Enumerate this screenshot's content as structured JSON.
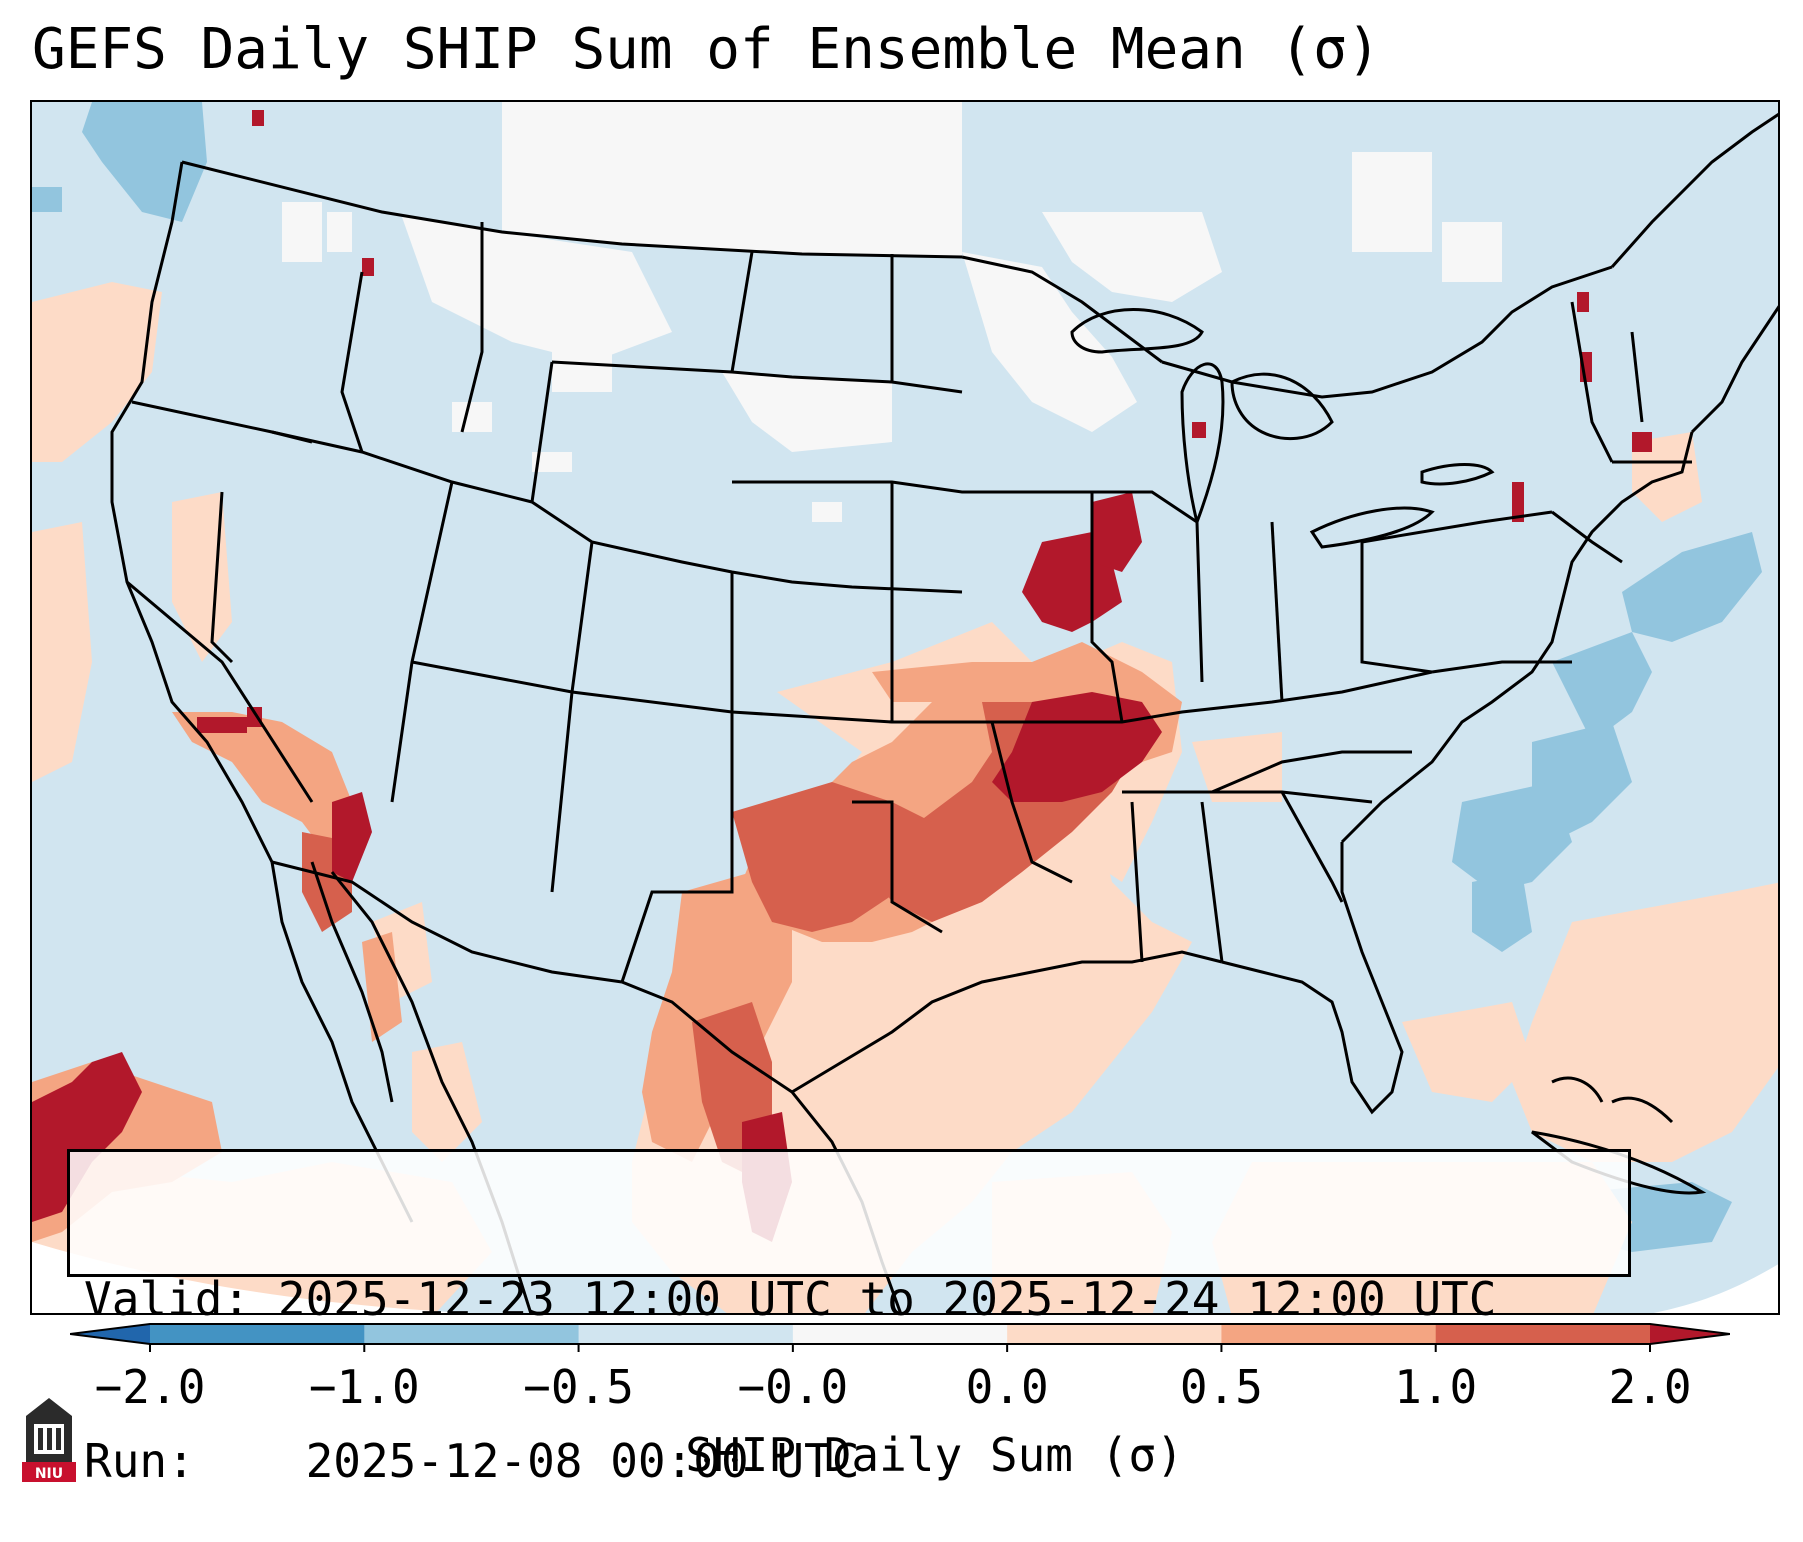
{
  "title": "GEFS Daily SHIP Sum of Ensemble Mean (σ)",
  "valid_label": "Valid:",
  "valid_value": "2025-12-23 12:00 UTC to 2025-12-24 12:00 UTC",
  "run_label": "Run:",
  "run_value": "2025-12-08 00:00 UTC",
  "colorbar": {
    "label": "SHIP Daily Sum (σ)",
    "ticks": [
      "−2.0",
      "−1.0",
      "−0.5",
      "−0.0",
      "0.0",
      "0.5",
      "1.0",
      "2.0"
    ],
    "colors": [
      "#4393c3",
      "#92c5de",
      "#d1e5f0",
      "#f7f7f7",
      "#fddbc7",
      "#f4a582",
      "#d6604d"
    ],
    "extend_low_color": "#2166ac",
    "extend_high_color": "#b2182b"
  },
  "logo": {
    "name": "niu-logo",
    "text": "NIU"
  }
}
